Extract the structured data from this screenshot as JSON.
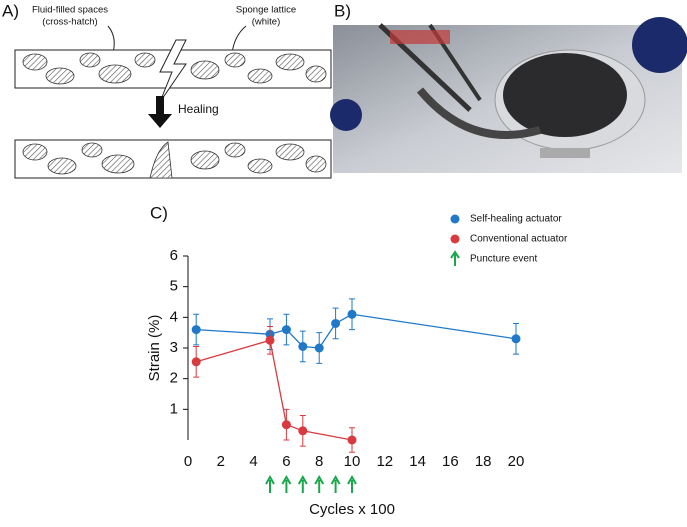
{
  "panel_a": {
    "label": "A)",
    "fluid_label": [
      "Fluid-filled spaces",
      "(cross-hatch)"
    ],
    "sponge_label": [
      "Sponge lattice",
      "(white)"
    ],
    "healing": "Healing"
  },
  "panel_b": {
    "label": "B)"
  },
  "panel_c": {
    "label": "C)"
  },
  "chart_data": {
    "type": "line",
    "xlabel": "Cycles x 100",
    "ylabel": "Strain (%)",
    "xlim": [
      0,
      20
    ],
    "ylim": [
      0,
      6
    ],
    "xticks": [
      0,
      2,
      4,
      6,
      8,
      10,
      12,
      14,
      16,
      18,
      20
    ],
    "yticks": [
      1,
      2,
      3,
      4,
      5,
      6
    ],
    "series": [
      {
        "name": "Self-healing actuator",
        "color": "#1f78c8",
        "x": [
          0.5,
          5,
          6,
          7,
          8,
          9,
          10,
          20
        ],
        "values": [
          3.6,
          3.45,
          3.6,
          3.05,
          3.0,
          3.8,
          4.1,
          3.3
        ],
        "errors": [
          0.5,
          0.5,
          0.5,
          0.5,
          0.5,
          0.5,
          0.5,
          0.5
        ]
      },
      {
        "name": "Conventional actuator",
        "color": "#d93a3f",
        "x": [
          0.5,
          5,
          6,
          7,
          10
        ],
        "values": [
          2.55,
          3.25,
          0.5,
          0.3,
          0
        ],
        "errors": [
          0.5,
          0.45,
          0.5,
          0.5,
          0.4
        ]
      }
    ],
    "events": {
      "name": "Puncture event",
      "color": "#1aa64a",
      "x": [
        5,
        6,
        7,
        8,
        9,
        10
      ]
    }
  }
}
